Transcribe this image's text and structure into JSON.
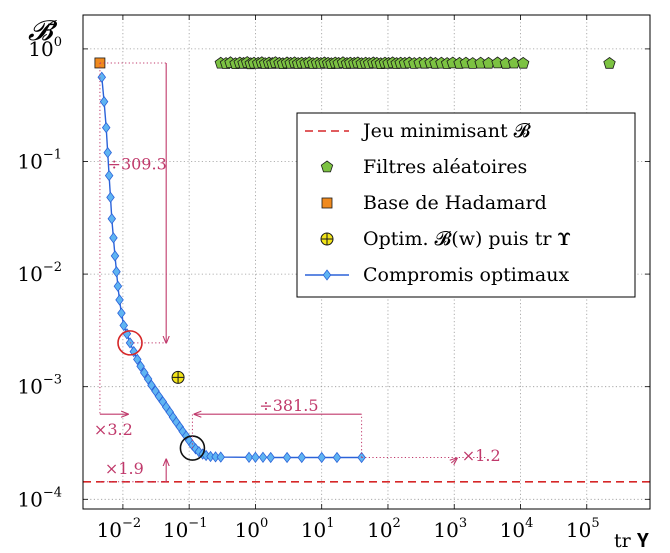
{
  "chart_data": {
    "type": "scatter",
    "x_scale": "log",
    "y_scale": "log",
    "xlim": [
      0.0025,
      900000
    ],
    "ylim": [
      8.2e-05,
      2.0
    ],
    "ylabel": "𝓑̄",
    "xlabel": "tr 𝚼",
    "grid": true,
    "legend_position": "right",
    "x_ticks": [
      {
        "value": 0.01,
        "base": "10",
        "exp": "−2"
      },
      {
        "value": 0.1,
        "base": "10",
        "exp": "−1"
      },
      {
        "value": 1,
        "base": "10",
        "exp": "0"
      },
      {
        "value": 10,
        "base": "10",
        "exp": "1"
      },
      {
        "value": 100,
        "base": "10",
        "exp": "2"
      },
      {
        "value": 1000,
        "base": "10",
        "exp": "3"
      },
      {
        "value": 10000,
        "base": "10",
        "exp": "4"
      },
      {
        "value": 100000,
        "base": "10",
        "exp": "5"
      }
    ],
    "y_ticks": [
      {
        "value": 1,
        "base": "10",
        "exp": "0"
      },
      {
        "value": 0.1,
        "base": "10",
        "exp": "−1"
      },
      {
        "value": 0.01,
        "base": "10",
        "exp": "−2"
      },
      {
        "value": 0.001,
        "base": "10",
        "exp": "−3"
      },
      {
        "value": 0.0001,
        "base": "10",
        "exp": "−4"
      }
    ],
    "series": [
      {
        "name": "Jeu minimisant 𝓑",
        "kind": "hline",
        "color": "#d62728",
        "y": 0.000143
      },
      {
        "name": "Filtres aléatoires",
        "kind": "pentagon",
        "color": "#7cc242",
        "points": [
          [
            0.3,
            0.745
          ],
          [
            0.36,
            0.74
          ],
          [
            0.42,
            0.752
          ],
          [
            0.5,
            0.738
          ],
          [
            0.58,
            0.748
          ],
          [
            0.66,
            0.742
          ],
          [
            0.75,
            0.755
          ],
          [
            0.85,
            0.737
          ],
          [
            0.95,
            0.746
          ],
          [
            1.1,
            0.743
          ],
          [
            1.25,
            0.752
          ],
          [
            1.4,
            0.739
          ],
          [
            1.6,
            0.748
          ],
          [
            1.8,
            0.741
          ],
          [
            2.0,
            0.754
          ],
          [
            2.3,
            0.744
          ],
          [
            2.6,
            0.738
          ],
          [
            3.0,
            0.749
          ],
          [
            3.4,
            0.743
          ],
          [
            3.9,
            0.751
          ],
          [
            4.4,
            0.74
          ],
          [
            5.0,
            0.747
          ],
          [
            5.7,
            0.742
          ],
          [
            6.5,
            0.753
          ],
          [
            7.4,
            0.739
          ],
          [
            8.5,
            0.746
          ],
          [
            9.7,
            0.741
          ],
          [
            11,
            0.75
          ],
          [
            12.5,
            0.744
          ],
          [
            14,
            0.738
          ],
          [
            16,
            0.748
          ],
          [
            18,
            0.742
          ],
          [
            21,
            0.752
          ],
          [
            24,
            0.74
          ],
          [
            27,
            0.747
          ],
          [
            31,
            0.743
          ],
          [
            35,
            0.749
          ],
          [
            40,
            0.739
          ],
          [
            46,
            0.746
          ],
          [
            52,
            0.741
          ],
          [
            60,
            0.75
          ],
          [
            68,
            0.744
          ],
          [
            78,
            0.738
          ],
          [
            90,
            0.747
          ],
          [
            102,
            0.742
          ],
          [
            118,
            0.751
          ],
          [
            135,
            0.74
          ],
          [
            155,
            0.746
          ],
          [
            180,
            0.743
          ],
          [
            210,
            0.749
          ],
          [
            250,
            0.741
          ],
          [
            300,
            0.747
          ],
          [
            360,
            0.744
          ],
          [
            440,
            0.75
          ],
          [
            520,
            0.742
          ],
          [
            640,
            0.746
          ],
          [
            780,
            0.74
          ],
          [
            950,
            0.748
          ],
          [
            1200,
            0.743
          ],
          [
            1500,
            0.747
          ],
          [
            1900,
            0.741
          ],
          [
            2500,
            0.746
          ],
          [
            3300,
            0.744
          ],
          [
            4500,
            0.749
          ],
          [
            6000,
            0.742
          ],
          [
            8000,
            0.747
          ],
          [
            11000,
            0.744
          ],
          [
            220000,
            0.742
          ]
        ]
      },
      {
        "name": "Base de Hadamard",
        "kind": "square",
        "color": "#f08a1e",
        "points": [
          [
            0.0045,
            0.75
          ]
        ]
      },
      {
        "name": "Optim. 𝓑(w) puis tr 𝚼",
        "kind": "circleplus",
        "color": "#f2e418",
        "points": [
          [
            0.068,
            0.00121
          ]
        ]
      },
      {
        "name": "Compromis optimaux",
        "kind": "line-diamond",
        "color": "#2b62d9",
        "marker_color": "#5fb4f2",
        "points": [
          [
            0.0048,
            0.56
          ],
          [
            0.0052,
            0.34
          ],
          [
            0.0056,
            0.2
          ],
          [
            0.0059,
            0.12
          ],
          [
            0.0062,
            0.075
          ],
          [
            0.0065,
            0.048
          ],
          [
            0.0068,
            0.031
          ],
          [
            0.0072,
            0.021
          ],
          [
            0.0076,
            0.0145
          ],
          [
            0.008,
            0.0105
          ],
          [
            0.0084,
            0.0078
          ],
          [
            0.0089,
            0.0059
          ],
          [
            0.0095,
            0.0045
          ],
          [
            0.0103,
            0.0035
          ],
          [
            0.0115,
            0.00295
          ],
          [
            0.0128,
            0.00245
          ],
          [
            0.0146,
            0.00205
          ],
          [
            0.0165,
            0.00175
          ],
          [
            0.0185,
            0.00152
          ],
          [
            0.021,
            0.00133
          ],
          [
            0.024,
            0.00117
          ],
          [
            0.027,
            0.00103
          ],
          [
            0.031,
            0.000915
          ],
          [
            0.035,
            0.00082
          ],
          [
            0.04,
            0.000735
          ],
          [
            0.045,
            0.00066
          ],
          [
            0.051,
            0.000595
          ],
          [
            0.057,
            0.000535
          ],
          [
            0.064,
            0.000485
          ],
          [
            0.072,
            0.00044
          ],
          [
            0.08,
            0.0004
          ],
          [
            0.09,
            0.000365
          ],
          [
            0.1,
            0.000332
          ],
          [
            0.112,
            0.000303
          ],
          [
            0.125,
            0.000281
          ],
          [
            0.14,
            0.000265
          ],
          [
            0.16,
            0.000252
          ],
          [
            0.18,
            0.000245
          ],
          [
            0.21,
            0.00024
          ],
          [
            0.25,
            0.000238
          ],
          [
            0.3,
            0.000237
          ],
          [
            0.8,
            0.000236
          ],
          [
            1.0,
            0.000236
          ],
          [
            1.3,
            0.000236
          ],
          [
            1.7,
            0.000235
          ],
          [
            3.0,
            0.000235
          ],
          [
            5.0,
            0.000235
          ],
          [
            10,
            0.000235
          ],
          [
            17,
            0.000235
          ],
          [
            40,
            0.000235
          ]
        ]
      }
    ],
    "annotations": [
      {
        "text": "÷309.3",
        "color": "#c0396b"
      },
      {
        "text": "÷381.5",
        "color": "#c0396b"
      },
      {
        "text": "×3.2",
        "color": "#c0396b"
      },
      {
        "text": "×1.9",
        "color": "#c0396b"
      },
      {
        "text": "×1.2",
        "color": "#c0396b"
      }
    ],
    "highlight_circles": [
      {
        "x": 0.0128,
        "y": 0.00245,
        "color": "#d62728"
      },
      {
        "x": 0.112,
        "y": 0.000285,
        "color": "#111111"
      }
    ]
  }
}
